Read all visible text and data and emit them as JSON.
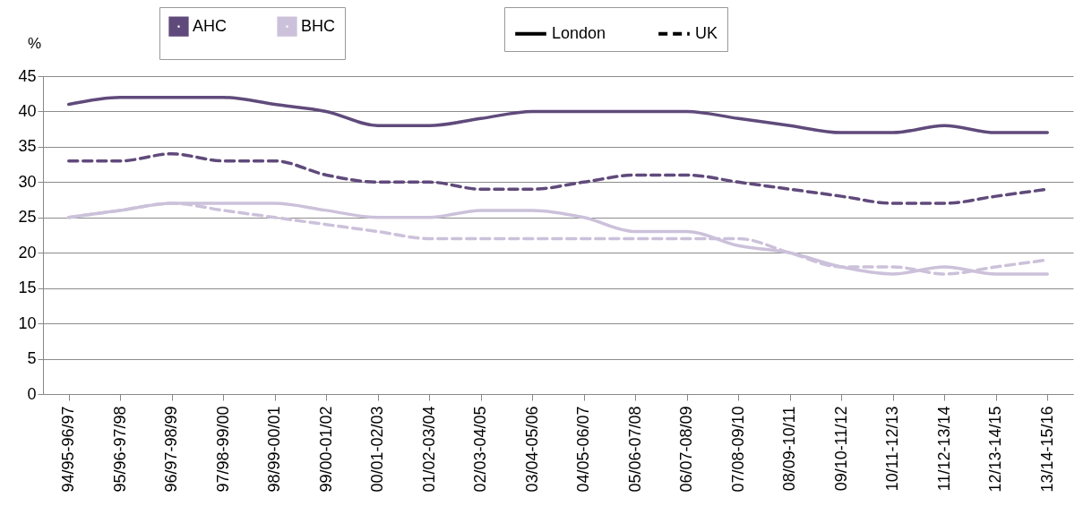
{
  "chart_data": {
    "type": "line",
    "ylabel": "%",
    "categories": [
      "94/95-96/97",
      "95/96-97/98",
      "96/97-98/99",
      "97/98-99/00",
      "98/99-00/01",
      "99/00-01/02",
      "00/01-02/03",
      "01/02-03/04",
      "02/03-04/05",
      "03/04-05/06",
      "04/05-06/07",
      "05/06-07/08",
      "06/07-08/09",
      "07/08-09/10",
      "08/09-10/11",
      "09/10-11/12",
      "10/11-12/13",
      "11/12-13/14",
      "12/13-14/15",
      "13/14-15/16"
    ],
    "series": [
      {
        "name": "AHC",
        "color": "#604a7b",
        "line_style": "solid",
        "values": [
          41,
          42,
          42,
          42,
          41,
          40,
          38,
          38,
          39,
          40,
          40,
          40,
          40,
          39,
          38,
          37,
          37,
          38,
          37,
          37
        ]
      },
      {
        "color": "#604a7b",
        "line_style": "dashed",
        "values": [
          33,
          33,
          34,
          33,
          33,
          31,
          30,
          30,
          29,
          29,
          30,
          31,
          31,
          30,
          29,
          28,
          27,
          27,
          28,
          29
        ]
      },
      {
        "name": "BHC",
        "color": "#ccc1da",
        "line_style": "solid",
        "values": [
          25,
          26,
          27,
          27,
          27,
          26,
          25,
          25,
          26,
          26,
          25,
          23,
          23,
          21,
          20,
          18,
          17,
          18,
          17,
          17
        ]
      },
      {
        "color": "#ccc1da",
        "line_style": "dashed",
        "values": [
          25,
          26,
          27,
          26,
          25,
          24,
          23,
          22,
          22,
          22,
          22,
          22,
          22,
          22,
          20,
          18,
          18,
          17,
          18,
          19
        ]
      }
    ],
    "annotations": [
      "London",
      "UK"
    ],
    "ylim": [
      0,
      45
    ],
    "yticks": [
      0,
      5,
      10,
      15,
      20,
      25,
      30,
      35,
      40,
      45
    ],
    "grid": "y",
    "legend": "top"
  }
}
